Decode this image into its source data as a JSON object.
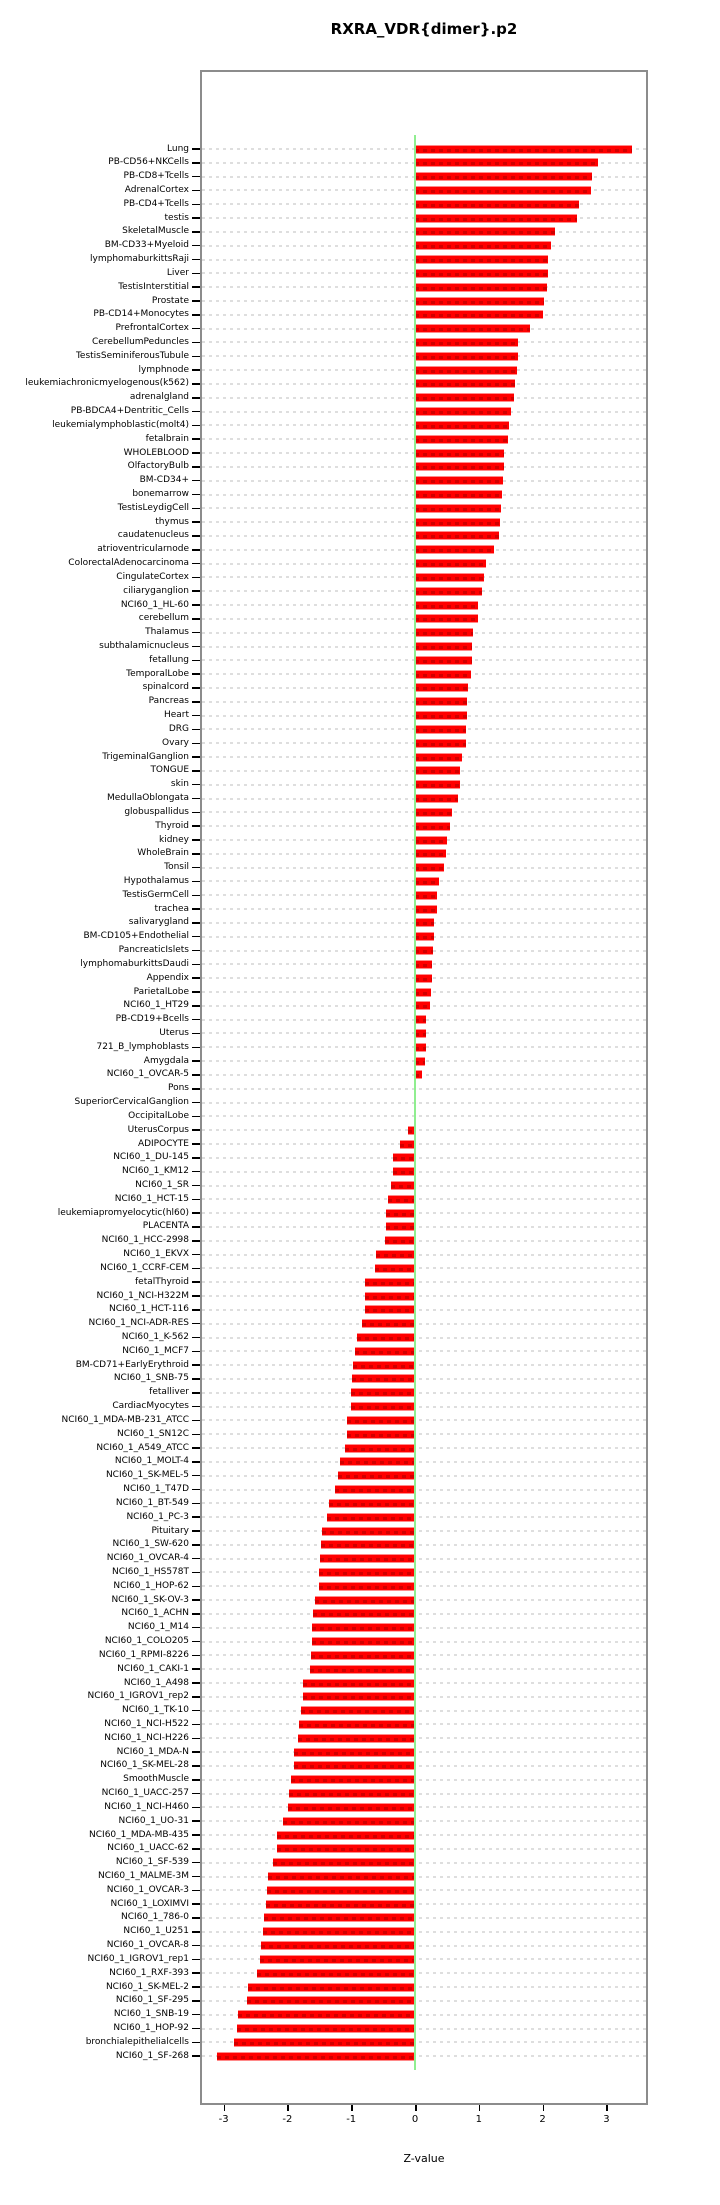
{
  "chart_data": {
    "type": "bar",
    "orientation": "horizontal",
    "title": "RXRA_VDR{dimer}.p2",
    "xlabel": "Z-value",
    "x_ticks": [
      -3,
      -2,
      -1,
      0,
      1,
      2,
      3
    ],
    "xlim": [
      -3.37,
      3.65
    ],
    "grid": true,
    "legend": "none",
    "bar_color": "#ff0000",
    "zero_line_color": "#90ee90",
    "grid_color": "#dedede",
    "box_color": "#8c8c8c",
    "categories": [
      "Lung",
      "PB-CD56+NKCells",
      "PB-CD8+Tcells",
      "AdrenalCortex",
      "PB-CD4+Tcells",
      "testis",
      "SkeletalMuscle",
      "BM-CD33+Myeloid",
      "lymphomaburkittsRaji",
      "Liver",
      "TestisInterstitial",
      "Prostate",
      "PB-CD14+Monocytes",
      "PrefrontalCortex",
      "CerebellumPeduncles",
      "TestisSeminiferousTubule",
      "lymphnode",
      "leukemiachronicmyelogenous(k562)",
      "adrenalgland",
      "PB-BDCA4+Dentritic_Cells",
      "leukemialymphoblastic(molt4)",
      "fetalbrain",
      "WHOLEBLOOD",
      "OlfactoryBulb",
      "BM-CD34+",
      "bonemarrow",
      "TestisLeydigCell",
      "thymus",
      "caudatenucleus",
      "atrioventricularnode",
      "ColorectalAdenocarcinoma",
      "CingulateCortex",
      "ciliaryganglion",
      "NCI60_1_HL-60",
      "cerebellum",
      "Thalamus",
      "subthalamicnucleus",
      "fetallung",
      "TemporalLobe",
      "spinalcord",
      "Pancreas",
      "Heart",
      "DRG",
      "Ovary",
      "TrigeminalGanglion",
      "TONGUE",
      "skin",
      "MedullaOblongata",
      "globuspallidus",
      "Thyroid",
      "kidney",
      "WholeBrain",
      "Tonsil",
      "Hypothalamus",
      "TestisGermCell",
      "trachea",
      "salivarygland",
      "BM-CD105+Endothelial",
      "PancreaticIslets",
      "lymphomaburkittsDaudi",
      "Appendix",
      "ParietalLobe",
      "NCI60_1_HT29",
      "PB-CD19+Bcells",
      "Uterus",
      "721_B_lymphoblasts",
      "Amygdala",
      "NCI60_1_OVCAR-5",
      "Pons",
      "SuperiorCervicalGanglion",
      "OccipitalLobe",
      "UterusCorpus",
      "ADIPOCYTE",
      "NCI60_1_DU-145",
      "NCI60_1_KM12",
      "NCI60_1_SR",
      "NCI60_1_HCT-15",
      "leukemiapromyelocytic(hl60)",
      "PLACENTA",
      "NCI60_1_HCC-2998",
      "NCI60_1_EKVX",
      "NCI60_1_CCRF-CEM",
      "fetalThyroid",
      "NCI60_1_NCI-H322M",
      "NCI60_1_HCT-116",
      "NCI60_1_NCI-ADR-RES",
      "NCI60_1_K-562",
      "NCI60_1_MCF7",
      "BM-CD71+EarlyErythroid",
      "NCI60_1_SNB-75",
      "fetalliver",
      "CardiacMyocytes",
      "NCI60_1_MDA-MB-231_ATCC",
      "NCI60_1_SN12C",
      "NCI60_1_A549_ATCC",
      "NCI60_1_MOLT-4",
      "NCI60_1_SK-MEL-5",
      "NCI60_1_T47D",
      "NCI60_1_BT-549",
      "NCI60_1_PC-3",
      "Pituitary",
      "NCI60_1_SW-620",
      "NCI60_1_OVCAR-4",
      "NCI60_1_HS578T",
      "NCI60_1_HOP-62",
      "NCI60_1_SK-OV-3",
      "NCI60_1_ACHN",
      "NCI60_1_M14",
      "NCI60_1_COLO205",
      "NCI60_1_RPMI-8226",
      "NCI60_1_CAKI-1",
      "NCI60_1_A498",
      "NCI60_1_IGROV1_rep2",
      "NCI60_1_TK-10",
      "NCI60_1_NCI-H522",
      "NCI60_1_NCI-H226",
      "NCI60_1_MDA-N",
      "NCI60_1_SK-MEL-28",
      "SmoothMuscle",
      "NCI60_1_UACC-257",
      "NCI60_1_NCI-H460",
      "NCI60_1_UO-31",
      "NCI60_1_MDA-MB-435",
      "NCI60_1_UACC-62",
      "NCI60_1_SF-539",
      "NCI60_1_MALME-3M",
      "NCI60_1_OVCAR-3",
      "NCI60_1_LOXIMVI",
      "NCI60_1_786-0",
      "NCI60_1_U251",
      "NCI60_1_OVCAR-8",
      "NCI60_1_IGROV1_rep1",
      "NCI60_1_RXF-393",
      "NCI60_1_SK-MEL-2",
      "NCI60_1_SF-295",
      "NCI60_1_SNB-19",
      "NCI60_1_HOP-92",
      "bronchialepithelialcells",
      "NCI60_1_SF-268"
    ],
    "values": [
      3.4,
      2.87,
      2.78,
      2.76,
      2.57,
      2.54,
      2.2,
      2.13,
      2.09,
      2.09,
      2.07,
      2.02,
      2.0,
      1.8,
      1.62,
      1.61,
      1.6,
      1.56,
      1.55,
      1.5,
      1.47,
      1.46,
      1.4,
      1.39,
      1.38,
      1.37,
      1.35,
      1.33,
      1.31,
      1.24,
      1.11,
      1.08,
      1.05,
      0.99,
      0.98,
      0.91,
      0.9,
      0.89,
      0.88,
      0.83,
      0.82,
      0.81,
      0.8,
      0.8,
      0.74,
      0.71,
      0.71,
      0.68,
      0.58,
      0.55,
      0.5,
      0.48,
      0.45,
      0.38,
      0.35,
      0.34,
      0.29,
      0.29,
      0.28,
      0.27,
      0.27,
      0.25,
      0.24,
      0.18,
      0.17,
      0.17,
      0.16,
      0.11,
      0.02,
      0.01,
      0.01,
      -0.11,
      -0.24,
      -0.35,
      -0.35,
      -0.38,
      -0.43,
      -0.45,
      -0.45,
      -0.47,
      -0.61,
      -0.63,
      -0.78,
      -0.78,
      -0.79,
      -0.83,
      -0.91,
      -0.94,
      -0.97,
      -0.99,
      -1.01,
      -1.01,
      -1.07,
      -1.07,
      -1.09,
      -1.17,
      -1.21,
      -1.26,
      -1.35,
      -1.38,
      -1.45,
      -1.48,
      -1.49,
      -1.5,
      -1.51,
      -1.57,
      -1.6,
      -1.61,
      -1.62,
      -1.63,
      -1.64,
      -1.75,
      -1.76,
      -1.79,
      -1.82,
      -1.84,
      -1.89,
      -1.9,
      -1.94,
      -1.98,
      -1.99,
      -2.07,
      -2.16,
      -2.17,
      -2.23,
      -2.3,
      -2.32,
      -2.33,
      -2.36,
      -2.39,
      -2.41,
      -2.43,
      -2.47,
      -2.61,
      -2.64,
      -2.77,
      -2.79,
      -2.84,
      -3.1
    ]
  }
}
